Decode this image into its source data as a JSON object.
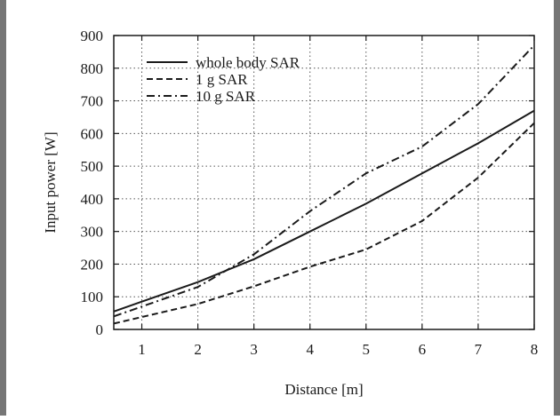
{
  "chart_data": {
    "type": "line",
    "title": "",
    "xlabel": "Distance [m]",
    "ylabel": "Input power [W]",
    "xlim": [
      0.5,
      8
    ],
    "ylim": [
      0,
      900
    ],
    "xticks": [
      1,
      2,
      3,
      4,
      5,
      6,
      7,
      8
    ],
    "yticks": [
      0,
      100,
      200,
      300,
      400,
      500,
      600,
      700,
      800,
      900
    ],
    "grid": true,
    "legend_position": "top-left",
    "x": [
      0.5,
      1,
      2,
      3,
      4,
      5,
      6,
      7,
      8
    ],
    "series": [
      {
        "name": "whole body SAR",
        "style": "solid",
        "values": [
          55,
          85,
          145,
          215,
          300,
          385,
          478,
          570,
          670
        ]
      },
      {
        "name": "1 g SAR",
        "style": "dashed",
        "values": [
          18,
          38,
          78,
          132,
          192,
          245,
          332,
          465,
          632
        ]
      },
      {
        "name": "10 g SAR",
        "style": "dashdot",
        "values": [
          40,
          70,
          130,
          230,
          362,
          478,
          560,
          690,
          870
        ]
      }
    ]
  }
}
